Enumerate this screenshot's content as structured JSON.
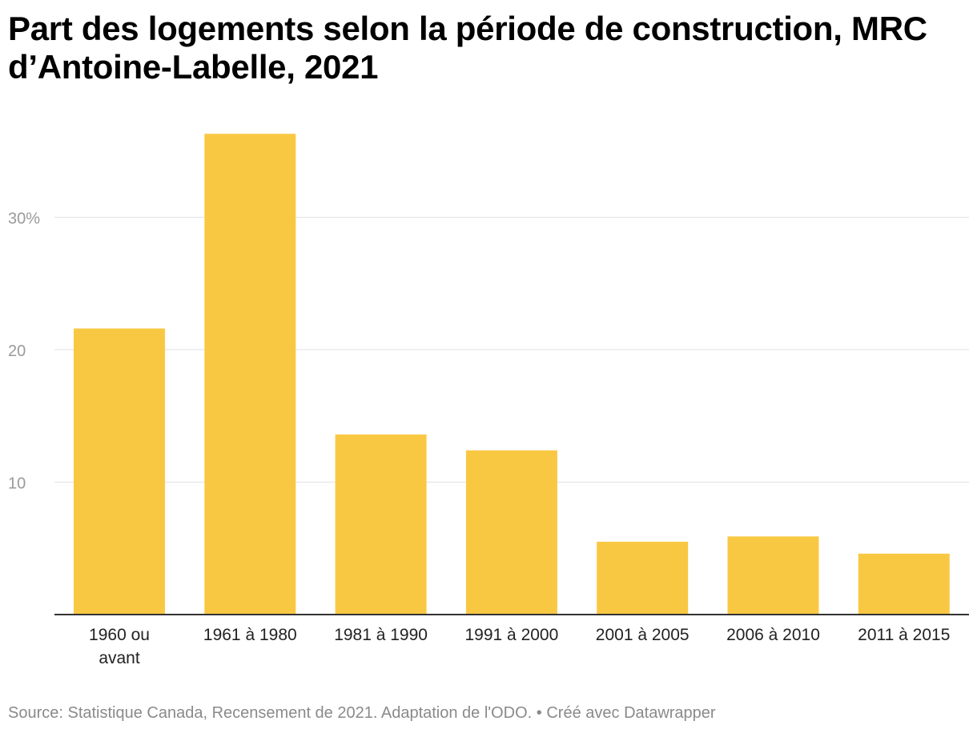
{
  "title": "Part des logements selon la période de construction, MRC d’Antoine-Labelle, 2021",
  "footer": {
    "source": "Source: Statistique Canada, Recensement de 2021. Adaptation de l'ODO.",
    "separator": " • ",
    "credit": "Créé avec Datawrapper"
  },
  "colors": {
    "bar": "#f9c843",
    "grid": "#e2e2e2",
    "baseline": "#333333"
  },
  "chart_data": {
    "type": "bar",
    "title": "Part des logements selon la période de construction, MRC d’Antoine-Labelle, 2021",
    "xlabel": "",
    "ylabel": "",
    "categories": [
      "1960 ou avant",
      "1961 à 1980",
      "1981 à 1990",
      "1991 à 2000",
      "2001 à 2005",
      "2006 à 2010",
      "2011 à 2015"
    ],
    "category_lines": [
      [
        "1960 ou",
        "avant"
      ],
      [
        "1961 à 1980"
      ],
      [
        "1981 à 1990"
      ],
      [
        "1991 à 2000"
      ],
      [
        "2001 à 2005"
      ],
      [
        "2006 à 2010"
      ],
      [
        "2011 à 2015"
      ]
    ],
    "values": [
      21.6,
      36.3,
      13.6,
      12.4,
      5.5,
      5.9,
      4.6
    ],
    "ylim": [
      0,
      38
    ],
    "yticks": [
      10,
      20,
      30
    ],
    "ytick_labels": [
      "10",
      "20",
      "30%"
    ],
    "grid": true
  }
}
